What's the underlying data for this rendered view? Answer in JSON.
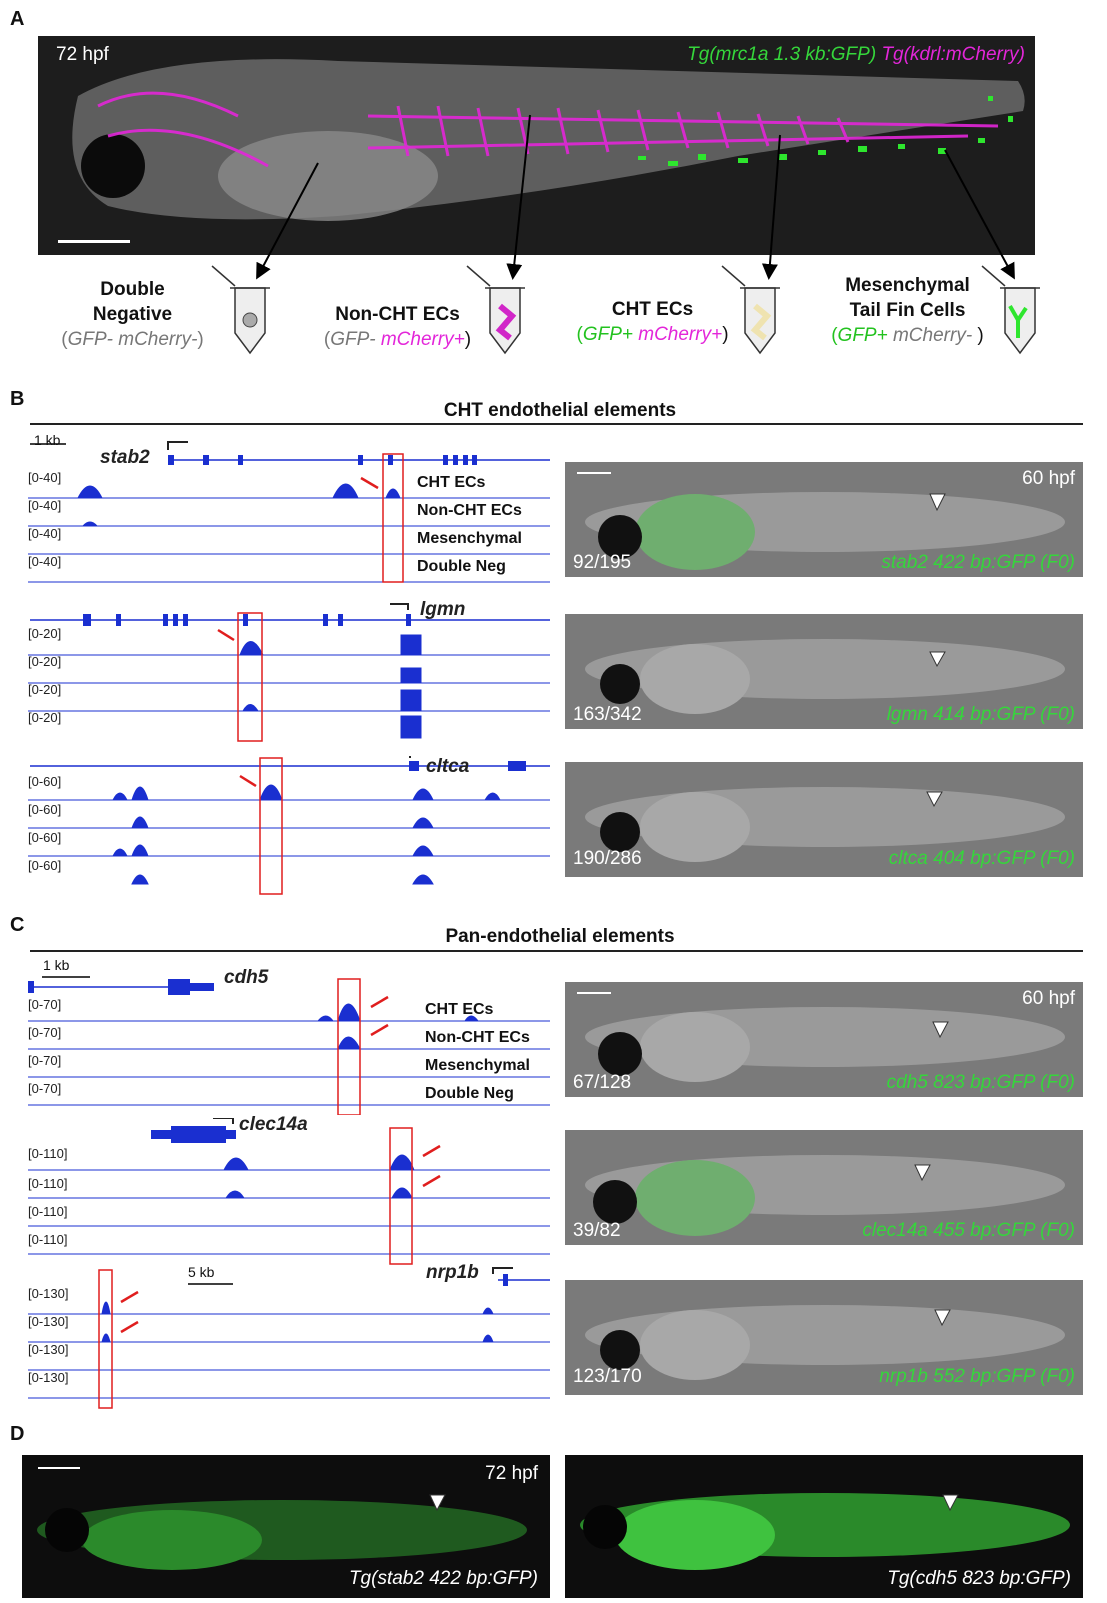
{
  "panel_letters": {
    "a": "A",
    "b": "B",
    "c": "C",
    "d": "D"
  },
  "panel_a": {
    "stage": "72 hpf",
    "legend_green": "Tg(mrc1a 1.3 kb:GFP)",
    "legend_magenta": "Tg(kdrl:mCherry)",
    "tubes": [
      {
        "name_line1": "Double",
        "name_line2": "Negative",
        "gfp": "GFP-",
        "mcherry": "mCherry-",
        "open": "(",
        "close": ")"
      },
      {
        "name_line1": "Non-CHT ECs",
        "name_line2": "",
        "gfp": "GFP-",
        "mcherry": "mCherry+",
        "open": "(",
        "close": ")"
      },
      {
        "name_line1": "CHT ECs",
        "name_line2": "",
        "gfp": "GFP+",
        "mcherry": "mCherry+",
        "open": "(",
        "close": ")"
      },
      {
        "name_line1": "Mesenchymal",
        "name_line2": "Tail Fin Cells",
        "gfp": "GFP+",
        "mcherry": "mCherry-",
        "open": "(",
        "close": " )"
      }
    ]
  },
  "panel_b": {
    "title": "CHT endothelial elements",
    "scale": "1 kb",
    "row_names": [
      "CHT ECs",
      "Non-CHT ECs",
      "Mesenchymal",
      "Double Neg"
    ],
    "genes": [
      {
        "name": "stab2",
        "range": "[0-40]",
        "fraction": "92/195",
        "construct": "stab2 422 bp:GFP (F0)",
        "stage": "60 hpf"
      },
      {
        "name": "lgmn",
        "range": "[0-20]",
        "fraction": "163/342",
        "construct": "lgmn 414 bp:GFP (F0)",
        "stage": ""
      },
      {
        "name": "cltca",
        "range": "[0-60]",
        "fraction": "190/286",
        "construct": "cltca 404 bp:GFP (F0)",
        "stage": ""
      }
    ]
  },
  "panel_c": {
    "title": "Pan-endothelial elements",
    "scale": "1 kb",
    "scale2": "5 kb",
    "row_names": [
      "CHT ECs",
      "Non-CHT ECs",
      "Mesenchymal",
      "Double Neg"
    ],
    "genes": [
      {
        "name": "cdh5",
        "range": "[0-70]",
        "fraction": "67/128",
        "construct": "cdh5 823 bp:GFP (F0)",
        "stage": "60 hpf"
      },
      {
        "name": "clec14a",
        "range": "[0-110]",
        "fraction": "39/82",
        "construct": "clec14a 455 bp:GFP (F0)",
        "stage": ""
      },
      {
        "name": "nrp1b",
        "range": "[0-130]",
        "fraction": "123/170",
        "construct": "nrp1b 552 bp:GFP (F0)",
        "stage": ""
      }
    ]
  },
  "panel_d": {
    "stage": "72 hpf",
    "left_label": "Tg(stab2 422 bp:GFP)",
    "right_label": "Tg(cdh5 823 bp:GFP)"
  },
  "colors": {
    "track": "#1a2fd0",
    "highlight": "#e01e1e",
    "gfp": "#35d63b",
    "mcherry": "#e326d9"
  }
}
